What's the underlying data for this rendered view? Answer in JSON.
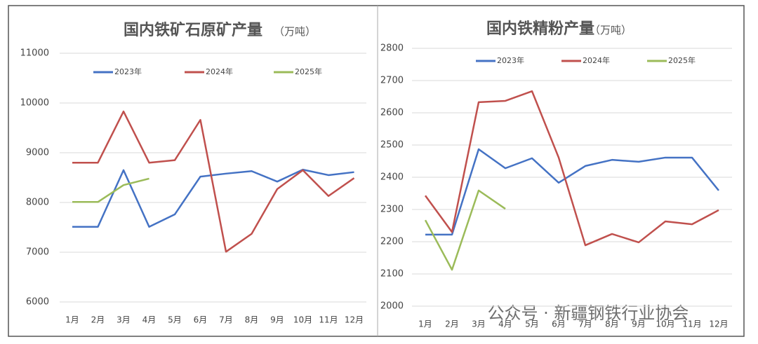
{
  "chart_data": [
    {
      "type": "line",
      "title": "国内铁矿石原矿产量",
      "unit": "（万吨）",
      "categories": [
        "1月",
        "2月",
        "3月",
        "4月",
        "5月",
        "6月",
        "7月",
        "8月",
        "9月",
        "10月",
        "11月",
        "12月"
      ],
      "series": [
        {
          "name": "2023年",
          "color": "#4472c4",
          "values": [
            7510,
            7510,
            8650,
            7510,
            7760,
            8520,
            8580,
            8630,
            8420,
            8660,
            8550,
            8610
          ]
        },
        {
          "name": "2024年",
          "color": "#c0504d",
          "values": [
            8800,
            8800,
            9830,
            8800,
            8850,
            9660,
            7010,
            7370,
            8270,
            8650,
            8130,
            8490
          ]
        },
        {
          "name": "2025年",
          "color": "#9bbb59",
          "values": [
            8010,
            8010,
            8350,
            8480,
            null,
            null,
            null,
            null,
            null,
            null,
            null,
            null
          ]
        }
      ],
      "ylim": [
        6000,
        11000
      ],
      "yticks": [
        6000,
        7000,
        8000,
        9000,
        10000,
        11000
      ],
      "grid": true,
      "legend": "top"
    },
    {
      "type": "line",
      "title": "国内铁精粉产量",
      "unit": "（万吨）",
      "categories": [
        "1月",
        "2月",
        "3月",
        "4月",
        "5月",
        "6月",
        "7月",
        "8月",
        "9月",
        "10月",
        "11月",
        "12月"
      ],
      "series": [
        {
          "name": "2023年",
          "color": "#4472c4",
          "values": [
            2222,
            2222,
            2487,
            2428,
            2459,
            2383,
            2435,
            2454,
            2448,
            2461,
            2461,
            2359
          ]
        },
        {
          "name": "2024年",
          "color": "#c0504d",
          "values": [
            2343,
            2230,
            2633,
            2637,
            2667,
            2461,
            2189,
            2224,
            2198,
            2263,
            2254,
            2298
          ]
        },
        {
          "name": "2025年",
          "color": "#9bbb59",
          "values": [
            2267,
            2113,
            2359,
            2302,
            null,
            null,
            null,
            null,
            null,
            null,
            null,
            null
          ]
        }
      ],
      "ylim": [
        2000,
        2800
      ],
      "yticks": [
        2000,
        2100,
        2200,
        2300,
        2400,
        2500,
        2600,
        2700,
        2800
      ],
      "grid": true,
      "legend": "top"
    }
  ],
  "watermark": "公众号 · 新疆钢铁行业协会"
}
